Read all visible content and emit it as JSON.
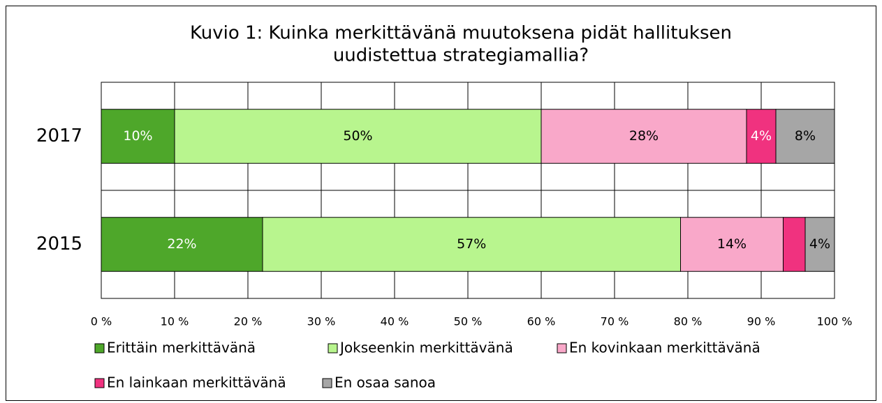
{
  "chart_data": {
    "type": "stacked-bar-horizontal",
    "title": [
      "Kuvio 1: Kuinka merkittävänä muutoksena pidät hallituksen",
      "uudistettua strategiamallia?"
    ],
    "categories": [
      "2017",
      "2015"
    ],
    "series": [
      {
        "name": "Erittäin merkittävänä",
        "color": "#4ea72a",
        "values": [
          10,
          22
        ],
        "value_labels": [
          "10%",
          "22%"
        ]
      },
      {
        "name": "Jokseenkin merkittävänä",
        "color": "#b8f58e",
        "values": [
          50,
          57
        ],
        "value_labels": [
          "50%",
          "57%"
        ]
      },
      {
        "name": "En kovinkaan merkittävänä",
        "color": "#f9a8c9",
        "values": [
          28,
          14
        ],
        "value_labels": [
          "28%",
          "14%"
        ]
      },
      {
        "name": "En lainkaan merkittävänä",
        "color": "#f0327f",
        "values": [
          4,
          3
        ],
        "value_labels": [
          "4%",
          null
        ]
      },
      {
        "name": "En osaa sanoa",
        "color": "#a6a6a6",
        "values": [
          8,
          4
        ],
        "value_labels": [
          "8%",
          "4%"
        ]
      }
    ],
    "xlim": [
      0,
      100
    ],
    "xticks": [
      {
        "value": 0,
        "label": "0 %"
      },
      {
        "value": 10,
        "label": "10 %"
      },
      {
        "value": 20,
        "label": "20 %"
      },
      {
        "value": 30,
        "label": "30 %"
      },
      {
        "value": 40,
        "label": "40 %"
      },
      {
        "value": 50,
        "label": "50 %"
      },
      {
        "value": 60,
        "label": "60 %"
      },
      {
        "value": 70,
        "label": "70 %"
      },
      {
        "value": 80,
        "label": "80 %"
      },
      {
        "value": 90,
        "label": "90 %"
      },
      {
        "value": 100,
        "label": "100 %"
      }
    ],
    "grid": true,
    "legend": "bottom"
  }
}
